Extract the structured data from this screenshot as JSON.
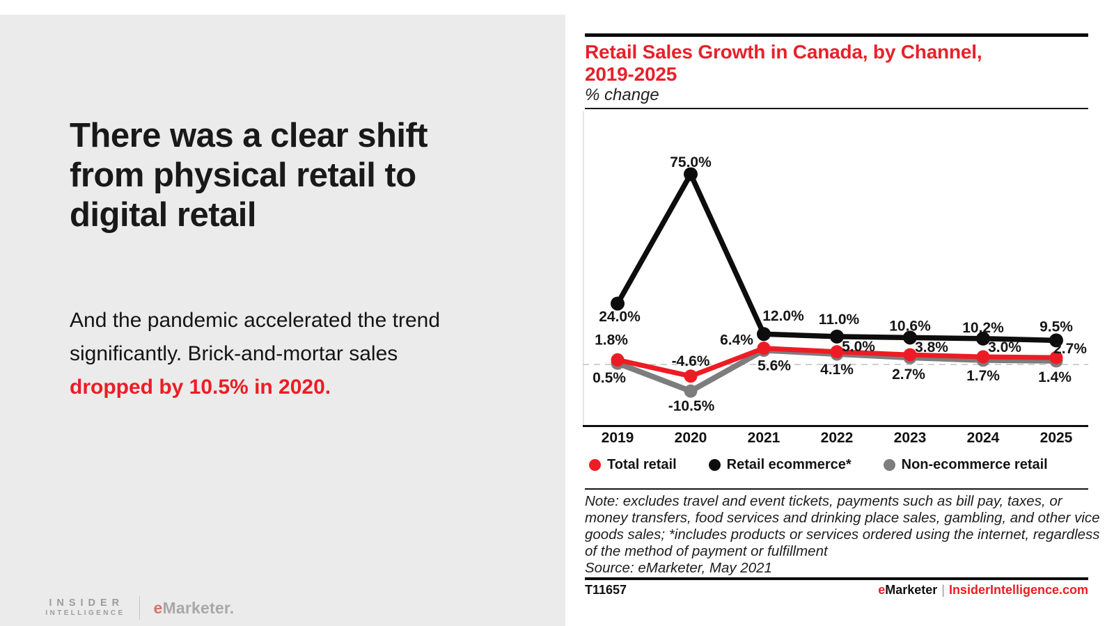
{
  "accent_red": "#ed1c24",
  "left_panel": {
    "heading_lines": [
      "There was a clear shift",
      "from physical retail to",
      "digital retail"
    ],
    "body_lines": [
      {
        "text": "And the pandemic accelerated the trend"
      },
      {
        "text": "significantly. Brick-and-mortar sales"
      },
      {
        "text": "dropped by 10.5% in 2020.",
        "highlight": true
      }
    ],
    "logo": {
      "insider": "INSIDER",
      "intelligence": "INTELLIGENCE",
      "emarketer_e": "e",
      "emarketer_rest": "Marketer."
    }
  },
  "chart": {
    "title_lines": [
      "Retail Sales Growth in Canada, by Channel,",
      "2019-2025"
    ],
    "subtitle": "% change"
  },
  "chart_data": {
    "type": "line",
    "title": "Retail Sales Growth in Canada, by Channel, 2019-2025",
    "subtitle": "% change",
    "categories": [
      "2019",
      "2020",
      "2021",
      "2022",
      "2023",
      "2024",
      "2025"
    ],
    "series": [
      {
        "name": "Total retail",
        "color": "#ed1c24",
        "values": [
          1.8,
          -4.6,
          6.4,
          5.0,
          3.8,
          3.0,
          2.7
        ]
      },
      {
        "name": "Retail ecommerce*",
        "color": "#0d0d0d",
        "values": [
          24.0,
          75.0,
          12.0,
          11.0,
          10.6,
          10.2,
          9.5
        ]
      },
      {
        "name": "Non-ecommerce retail",
        "color": "#7d7d7d",
        "values": [
          0.5,
          -10.5,
          5.6,
          4.1,
          2.7,
          1.7,
          1.4
        ]
      }
    ],
    "label_format": "percent_one_decimal",
    "ylim": [
      -25,
      100
    ],
    "zero_line": "dashed",
    "grid": "none",
    "legend_position": "bottom"
  },
  "note": {
    "lines": [
      "Note: excludes travel and event tickets, payments such as bill pay, taxes, or",
      "money transfers, food services and drinking place sales, gambling, and other vice",
      "goods sales; *includes products or services ordered using the internet, regardless",
      "of the method of payment or fulfillment",
      "Source: eMarketer, May 2021"
    ]
  },
  "footer": {
    "chart_id": "T11657",
    "brand_e": "e",
    "brand_rest": "Marketer",
    "separator": "|",
    "site": "InsiderIntelligence.com"
  }
}
